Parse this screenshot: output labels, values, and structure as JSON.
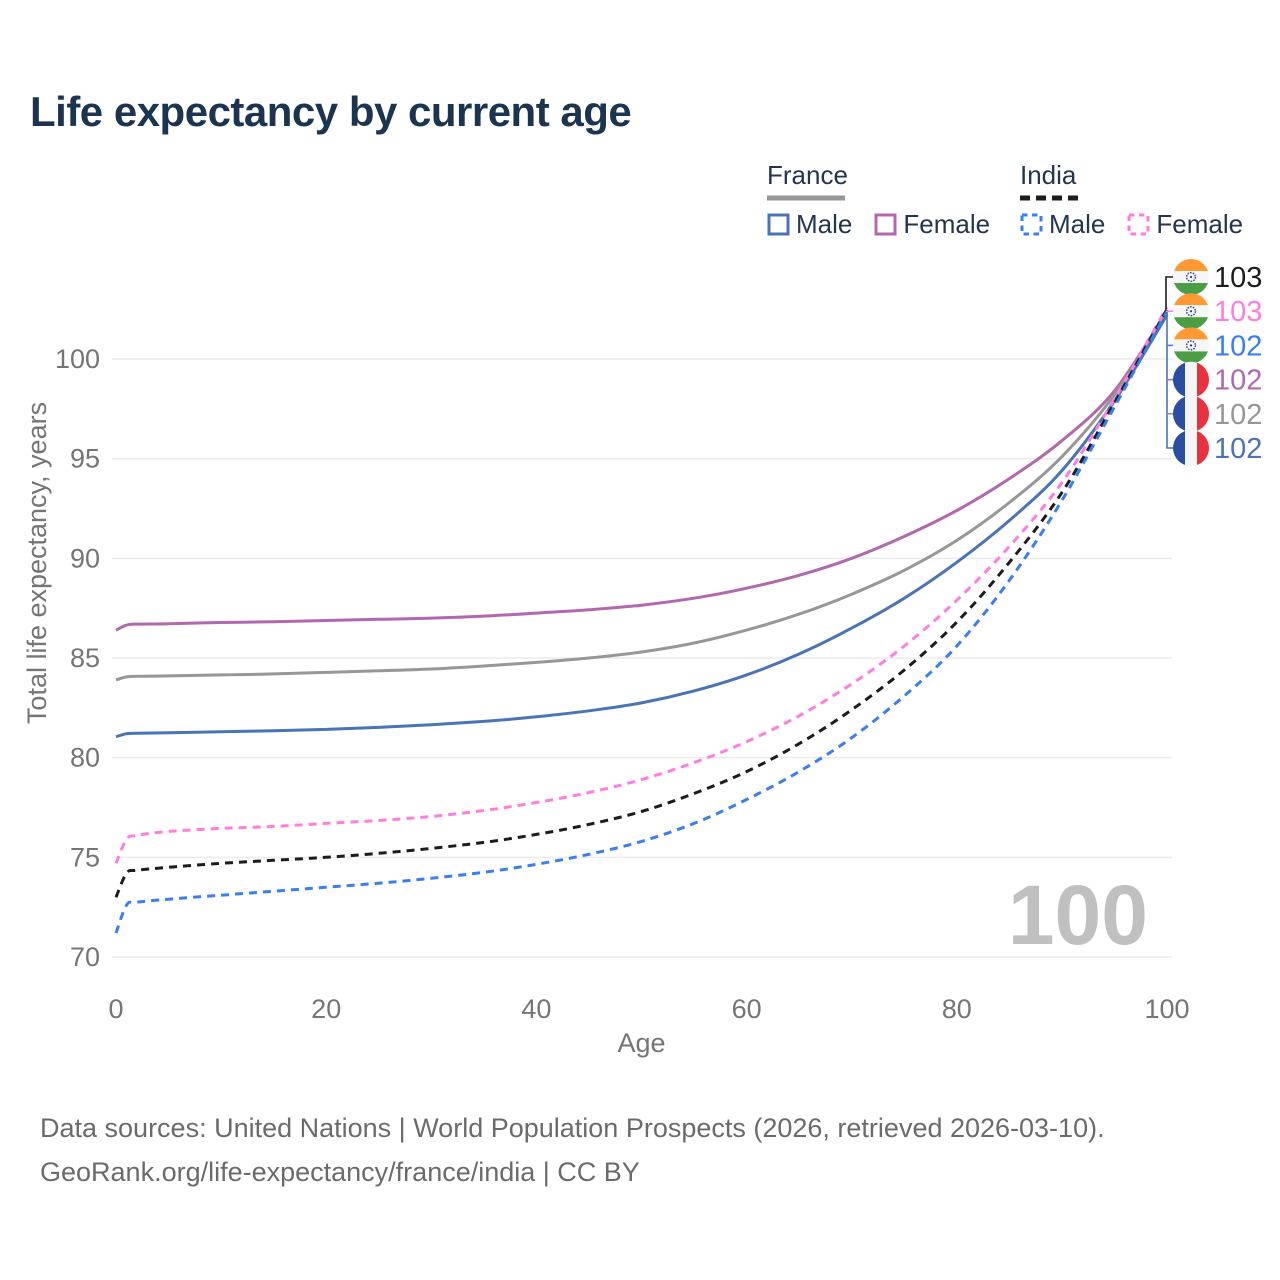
{
  "title": "Life expectancy by current age",
  "legend": {
    "france": {
      "label": "France",
      "male": "Male",
      "female": "Female"
    },
    "india": {
      "label": "India",
      "male": "Male",
      "female": "Female"
    }
  },
  "watermark": "100",
  "footer": {
    "line1": "Data sources: United Nations | World Population Prospects (2026, retrieved 2026-03-10).",
    "line2": "GeoRank.org/life-expectancy/france/india | CC BY"
  },
  "colors": {
    "title_text": "#1b3450",
    "legend_text": "#24364f",
    "axis_text": "#757575",
    "footer_text": "#6b6b6b",
    "gridline": "#ebebeb",
    "watermark": "#c0c0c0"
  },
  "chart_data": {
    "type": "line",
    "title": "Life expectancy by current age",
    "xlabel": "Age",
    "ylabel": "Total life expectancy, years",
    "xlim": [
      0,
      100
    ],
    "ylim": [
      70,
      103.5
    ],
    "x_ticks": [
      0,
      20,
      40,
      60,
      80,
      100
    ],
    "y_ticks": [
      70,
      75,
      80,
      85,
      90,
      95,
      100
    ],
    "grid": "horizontal",
    "legend_position": "top-right",
    "x": [
      0,
      1,
      2,
      5,
      10,
      15,
      20,
      25,
      30,
      35,
      40,
      45,
      50,
      55,
      60,
      65,
      70,
      75,
      80,
      85,
      90,
      95,
      100
    ],
    "series": [
      {
        "name": "France Female",
        "country": "France",
        "sex": "Female",
        "color": "#b168af",
        "dash": "solid",
        "values": [
          86.4,
          86.65,
          86.7,
          86.72,
          86.78,
          86.82,
          86.88,
          86.94,
          87.0,
          87.1,
          87.25,
          87.42,
          87.65,
          88.0,
          88.5,
          89.15,
          90.0,
          91.1,
          92.4,
          94.0,
          95.9,
          98.4,
          102.4
        ]
      },
      {
        "name": "France All",
        "country": "France",
        "sex": "All",
        "color": "#979797",
        "dash": "solid",
        "values": [
          83.9,
          84.05,
          84.08,
          84.1,
          84.15,
          84.2,
          84.28,
          84.36,
          84.45,
          84.6,
          84.78,
          85.0,
          85.3,
          85.75,
          86.4,
          87.2,
          88.2,
          89.4,
          90.9,
          92.8,
          95.1,
          98.2,
          102.3
        ]
      },
      {
        "name": "France Male",
        "country": "France",
        "sex": "Male",
        "color": "#4a74b5",
        "dash": "solid",
        "values": [
          81.05,
          81.2,
          81.22,
          81.25,
          81.3,
          81.35,
          81.42,
          81.52,
          81.65,
          81.82,
          82.05,
          82.35,
          82.75,
          83.35,
          84.15,
          85.2,
          86.5,
          88.0,
          89.8,
          91.9,
          94.4,
          97.9,
          102.2
        ]
      },
      {
        "name": "India Female",
        "country": "India",
        "sex": "Female",
        "color": "#ff7de1",
        "dash": "dashed",
        "values": [
          74.7,
          75.9,
          76.1,
          76.3,
          76.45,
          76.55,
          76.7,
          76.85,
          77.05,
          77.35,
          77.75,
          78.25,
          78.9,
          79.75,
          80.8,
          82.1,
          83.7,
          85.6,
          87.9,
          90.6,
          93.8,
          98.0,
          102.6
        ]
      },
      {
        "name": "India All",
        "country": "India",
        "sex": "All",
        "color": "#1c1c1c",
        "dash": "dashed",
        "values": [
          73.0,
          74.2,
          74.35,
          74.5,
          74.7,
          74.85,
          75.0,
          75.2,
          75.45,
          75.75,
          76.15,
          76.65,
          77.3,
          78.2,
          79.3,
          80.7,
          82.4,
          84.4,
          86.8,
          89.8,
          93.3,
          97.8,
          102.5
        ]
      },
      {
        "name": "India Male",
        "country": "India",
        "sex": "Male",
        "color": "#3b7ef2",
        "dash": "dashed",
        "values": [
          71.2,
          72.6,
          72.75,
          72.9,
          73.1,
          73.3,
          73.5,
          73.7,
          73.95,
          74.25,
          74.65,
          75.15,
          75.8,
          76.7,
          77.9,
          79.3,
          81.0,
          83.1,
          85.6,
          88.9,
          92.9,
          97.6,
          102.4
        ]
      }
    ],
    "end_labels": [
      {
        "series": "India All",
        "value": "103",
        "flag": "India"
      },
      {
        "series": "India Female",
        "value": "103",
        "flag": "India"
      },
      {
        "series": "India Male",
        "value": "102",
        "flag": "India"
      },
      {
        "series": "France Female",
        "value": "102",
        "flag": "France"
      },
      {
        "series": "France All",
        "value": "102",
        "flag": "France"
      },
      {
        "series": "France Male",
        "value": "102",
        "flag": "France"
      }
    ]
  }
}
